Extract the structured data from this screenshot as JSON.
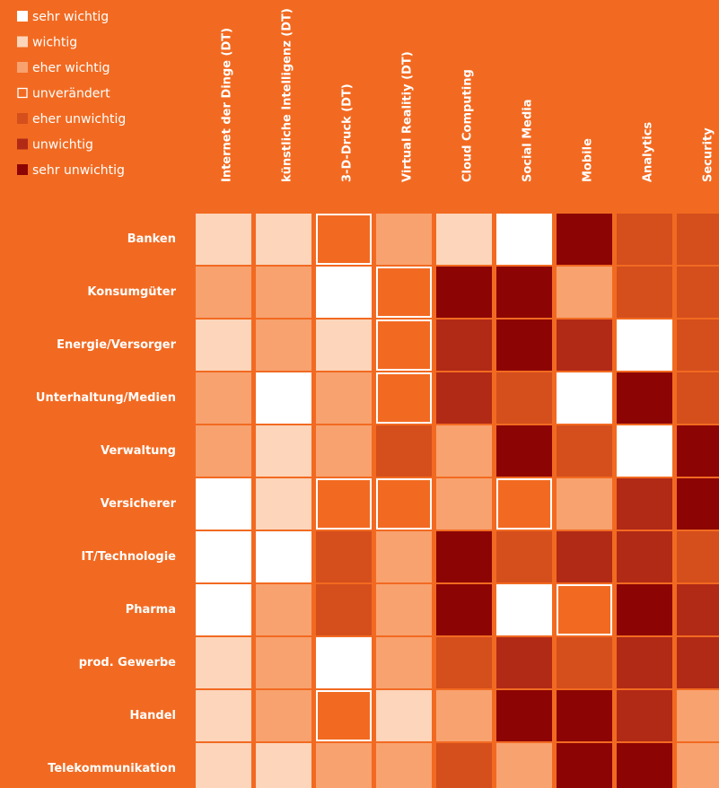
{
  "chart_data": {
    "type": "heatmap",
    "background": "#f26a21",
    "legend": [
      {
        "label": "sehr wichtig",
        "color": "#ffffff",
        "outline": false
      },
      {
        "label": "wichtig",
        "color": "#fcd5bb",
        "outline": false
      },
      {
        "label": "eher wichtig",
        "color": "#f8a26f",
        "outline": false
      },
      {
        "label": "unverändert",
        "color": "#f26a21",
        "outline": true
      },
      {
        "label": "eher unwichtig",
        "color": "#d44f1c",
        "outline": false
      },
      {
        "label": "unwichtig",
        "color": "#b12a16",
        "outline": false
      },
      {
        "label": "sehr unwichtig",
        "color": "#8c0504",
        "outline": false
      }
    ],
    "columns": [
      "Internet der Dinge (DT)",
      "künstliche Intelligenz (DT)",
      "3-D-Druck (DT)",
      "Virtual Realitiy (DT)",
      "Cloud Computing",
      "Social Media",
      "Mobile",
      "Analytics",
      "Security"
    ],
    "rows": [
      "Banken",
      "Konsumgüter",
      "Energie/Versorger",
      "Unterhaltung/Medien",
      "Verwaltung",
      "Versicherer",
      "IT/Technologie",
      "Pharma",
      "prod. Gewerbe",
      "Handel",
      "Telekommunikation"
    ],
    "cells": [
      [
        "wichtig",
        "wichtig",
        "unverändert",
        "eher wichtig",
        "wichtig",
        "sehr wichtig",
        "sehr unwichtig",
        "eher unwichtig",
        "eher unwichtig"
      ],
      [
        "eher wichtig",
        "eher wichtig",
        "sehr wichtig",
        "unverändert",
        "sehr unwichtig",
        "sehr unwichtig",
        "eher wichtig",
        "eher unwichtig",
        "eher unwichtig"
      ],
      [
        "wichtig",
        "eher wichtig",
        "wichtig",
        "unverändert",
        "unwichtig",
        "sehr unwichtig",
        "unwichtig",
        "sehr wichtig",
        "eher unwichtig"
      ],
      [
        "eher wichtig",
        "sehr wichtig",
        "eher wichtig",
        "unverändert",
        "unwichtig",
        "eher unwichtig",
        "sehr wichtig",
        "sehr unwichtig",
        "eher unwichtig"
      ],
      [
        "eher wichtig",
        "wichtig",
        "eher wichtig",
        "eher unwichtig",
        "eher wichtig",
        "sehr unwichtig",
        "eher unwichtig",
        "sehr wichtig",
        "sehr unwichtig"
      ],
      [
        "sehr wichtig",
        "wichtig",
        "unverändert",
        "unverändert",
        "eher wichtig",
        "unverändert",
        "eher wichtig",
        "unwichtig",
        "sehr unwichtig"
      ],
      [
        "sehr wichtig",
        "sehr wichtig",
        "eher unwichtig",
        "eher wichtig",
        "sehr unwichtig",
        "eher unwichtig",
        "unwichtig",
        "unwichtig",
        "eher unwichtig"
      ],
      [
        "sehr wichtig",
        "eher wichtig",
        "eher unwichtig",
        "eher wichtig",
        "sehr unwichtig",
        "sehr wichtig",
        "unverändert",
        "sehr unwichtig",
        "unwichtig"
      ],
      [
        "wichtig",
        "eher wichtig",
        "sehr wichtig",
        "eher wichtig",
        "eher unwichtig",
        "unwichtig",
        "eher unwichtig",
        "unwichtig",
        "unwichtig"
      ],
      [
        "wichtig",
        "eher wichtig",
        "unverändert",
        "wichtig",
        "eher wichtig",
        "sehr unwichtig",
        "sehr unwichtig",
        "unwichtig",
        "eher wichtig"
      ],
      [
        "wichtig",
        "wichtig",
        "eher wichtig",
        "eher wichtig",
        "eher unwichtig",
        "eher wichtig",
        "sehr unwichtig",
        "sehr unwichtig",
        "eher wichtig"
      ]
    ]
  }
}
